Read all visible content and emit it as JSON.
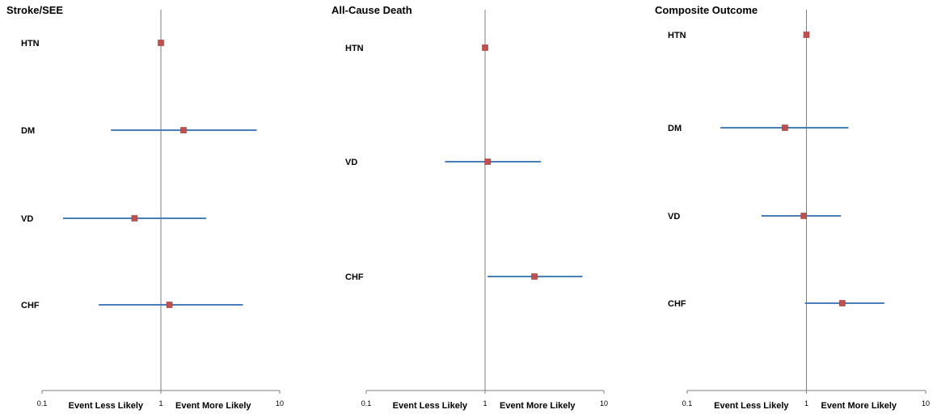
{
  "chart_data": [
    {
      "type": "forest",
      "title": "Stroke/SEE",
      "scale": "log",
      "xlim": [
        0.1,
        10
      ],
      "ticks": [
        "0.1",
        "1",
        "10"
      ],
      "reference_line": 1,
      "left_label": "Event Less Likely",
      "right_label": "Event More Likely",
      "rows": [
        {
          "label": "HTN",
          "estimate": 1.0,
          "ci": null
        },
        {
          "label": "DM",
          "estimate": 1.55,
          "ci": [
            0.38,
            6.4
          ]
        },
        {
          "label": "VD",
          "estimate": 0.6,
          "ci": [
            0.15,
            2.4
          ]
        },
        {
          "label": "CHF",
          "estimate": 1.18,
          "ci": [
            0.3,
            4.9
          ]
        }
      ]
    },
    {
      "type": "forest",
      "title": "All-Cause Death",
      "scale": "log",
      "xlim": [
        0.1,
        10
      ],
      "ticks": [
        "0.1",
        "1",
        "10"
      ],
      "reference_line": 1,
      "left_label": "Event Less Likely",
      "right_label": "Event More Likely",
      "rows": [
        {
          "label": "HTN",
          "estimate": 1.0,
          "ci": null
        },
        {
          "label": "VD",
          "estimate": 1.05,
          "ci": [
            0.46,
            2.95
          ]
        },
        {
          "label": "CHF",
          "estimate": 2.6,
          "ci": [
            1.05,
            6.6
          ]
        }
      ]
    },
    {
      "type": "forest",
      "title": "Composite Outcome",
      "scale": "log",
      "xlim": [
        0.1,
        10
      ],
      "ticks": [
        "0.1",
        "1",
        "10"
      ],
      "reference_line": 1,
      "left_label": "Event Less Likely",
      "right_label": "Event More Likely",
      "rows": [
        {
          "label": "HTN",
          "estimate": 1.0,
          "ci": null
        },
        {
          "label": "DM",
          "estimate": 0.66,
          "ci": [
            0.19,
            2.25
          ]
        },
        {
          "label": "VD",
          "estimate": 0.95,
          "ci": [
            0.42,
            1.95
          ]
        },
        {
          "label": "CHF",
          "estimate": 2.0,
          "ci": [
            0.97,
            4.5
          ]
        }
      ]
    }
  ],
  "colors": {
    "ci_line": "#4a7ebb",
    "marker": "#c0504d",
    "marker_edge": "#9b3a37",
    "reference": "#7f7f7f",
    "axis": "#7f7f7f"
  }
}
